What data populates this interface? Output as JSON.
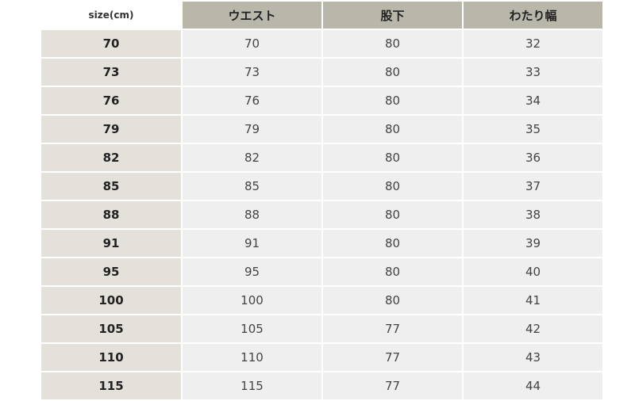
{
  "header": {
    "corner": "size(cm)",
    "columns": [
      "ウエスト",
      "股下",
      "わたり幅"
    ]
  },
  "rows": [
    {
      "size": "70",
      "waist": "70",
      "inseam": "80",
      "thigh": "32"
    },
    {
      "size": "73",
      "waist": "73",
      "inseam": "80",
      "thigh": "33"
    },
    {
      "size": "76",
      "waist": "76",
      "inseam": "80",
      "thigh": "34"
    },
    {
      "size": "79",
      "waist": "79",
      "inseam": "80",
      "thigh": "35"
    },
    {
      "size": "82",
      "waist": "82",
      "inseam": "80",
      "thigh": "36"
    },
    {
      "size": "85",
      "waist": "85",
      "inseam": "80",
      "thigh": "37"
    },
    {
      "size": "88",
      "waist": "88",
      "inseam": "80",
      "thigh": "38"
    },
    {
      "size": "91",
      "waist": "91",
      "inseam": "80",
      "thigh": "39"
    },
    {
      "size": "95",
      "waist": "95",
      "inseam": "80",
      "thigh": "40"
    },
    {
      "size": "100",
      "waist": "100",
      "inseam": "80",
      "thigh": "41"
    },
    {
      "size": "105",
      "waist": "105",
      "inseam": "77",
      "thigh": "42"
    },
    {
      "size": "110",
      "waist": "110",
      "inseam": "77",
      "thigh": "43"
    },
    {
      "size": "115",
      "waist": "115",
      "inseam": "77",
      "thigh": "44"
    }
  ]
}
